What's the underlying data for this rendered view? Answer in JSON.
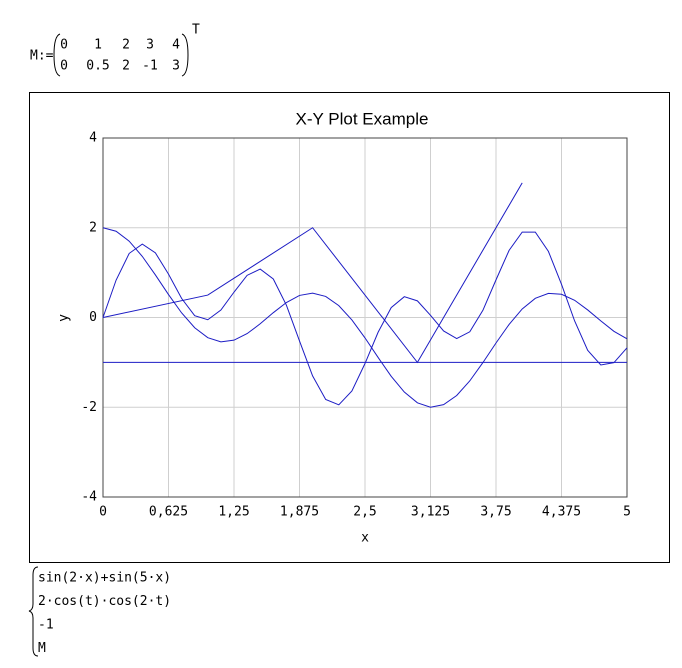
{
  "definition": {
    "label": "M:=",
    "rows": [
      [
        "0",
        "1",
        "2",
        "3",
        "4"
      ],
      [
        "0",
        "0.5",
        "2",
        "-1",
        "3"
      ]
    ],
    "transpose": "T"
  },
  "chart_data": {
    "type": "line",
    "title": "X-Y Plot Example",
    "x_label": "x",
    "y_label": "y",
    "x": [
      0,
      0.125,
      0.25,
      0.375,
      0.5,
      0.625,
      0.75,
      0.875,
      1,
      1.125,
      1.25,
      1.375,
      1.5,
      1.625,
      1.75,
      1.875,
      2,
      2.125,
      2.25,
      2.375,
      2.5,
      2.625,
      2.75,
      2.875,
      3,
      3.125,
      3.25,
      3.375,
      3.5,
      3.625,
      3.75,
      3.875,
      4,
      4.125,
      4.25,
      4.375,
      4.5,
      4.625,
      4.75,
      4.875,
      5
    ],
    "series": [
      {
        "name": "sin(2·x)+sin(5·x)",
        "color": "#1c1cc4",
        "values": [
          0,
          0.8325,
          1.4284,
          1.6356,
          1.44,
          0.9656,
          0.4259,
          0.0403,
          -0.0496,
          0.1662,
          0.5653,
          0.9395,
          1.0791,
          0.8586,
          0.2739,
          -0.5218,
          -1.3008,
          -1.8271,
          -1.9453,
          -1.637,
          -1.0252,
          -0.3289,
          0.2207,
          0.4636,
          0.3709,
          0.0497,
          -0.3007,
          -0.4695,
          -0.3186,
          0.1603,
          0.8386,
          1.4961,
          1.9023,
          1.902,
          1.4735,
          0.7406,
          -0.0751,
          -0.7318,
          -1.0576,
          -1.0068,
          -0.6764
        ]
      },
      {
        "name": "2·cos(t)·cos(2·t)",
        "color": "#1c1cc4",
        "values": [
          2,
          1.9227,
          1.7006,
          1.3617,
          0.9483,
          0.5114,
          0.1035,
          -0.2285,
          -0.4497,
          -0.5418,
          -0.5052,
          -0.3595,
          -0.14,
          0.1076,
          0.3338,
          0.4915,
          0.5439,
          0.4691,
          0.2648,
          -0.0542,
          -0.4545,
          -0.8904,
          -1.3101,
          -1.6618,
          -1.9012,
          -1.9996,
          -1.9417,
          -1.7387,
          -1.4121,
          -1.0051,
          -0.5688,
          -0.1543,
          0.1902,
          0.4277,
          0.537,
          0.5179,
          0.3841,
          0.1684,
          -0.075,
          -0.307,
          -0.4761
        ]
      },
      {
        "name": "-1",
        "color": "#1c1cc4",
        "x": [
          0,
          5
        ],
        "values": [
          -1,
          -1
        ]
      },
      {
        "name": "M",
        "color": "#1c1cc4",
        "x": [
          0,
          1,
          2,
          3,
          4
        ],
        "values": [
          0,
          0.5,
          2,
          -1,
          3
        ]
      }
    ],
    "xlim": [
      0,
      5
    ],
    "ylim": [
      -4,
      4
    ],
    "xticks": [
      0,
      {
        "value": 0.625,
        "label": "0,625"
      },
      {
        "value": 1.25,
        "label": "1,25"
      },
      {
        "value": 1.875,
        "label": "1,875"
      },
      {
        "value": 2.5,
        "label": "2,5"
      },
      {
        "value": 3.125,
        "label": "3,125"
      },
      {
        "value": 3.75,
        "label": "3,75"
      },
      {
        "value": 4.375,
        "label": "4,375"
      },
      5
    ],
    "yticks": [
      -4,
      -2,
      0,
      2,
      4
    ],
    "grid": true
  }
}
